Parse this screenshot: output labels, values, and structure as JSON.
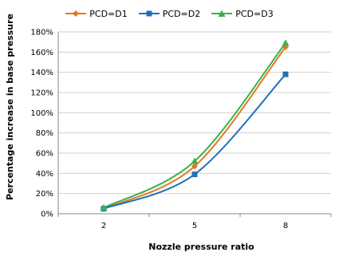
{
  "chart_data": {
    "type": "line",
    "title": "",
    "xlabel": "Nozzle pressure ratio",
    "ylabel": "Percentage increase in base pressure",
    "categories": [
      "2",
      "5",
      "8"
    ],
    "y_ticks": [
      "0%",
      "20%",
      "40%",
      "60%",
      "80%",
      "100%",
      "120%",
      "140%",
      "160%",
      "180%"
    ],
    "ylim": [
      0,
      180
    ],
    "grid": true,
    "legend_position": "top",
    "series": [
      {
        "name": "PCD=D1",
        "color": "#E07B22",
        "marker": "diamond",
        "values": [
          5,
          47,
          165
        ]
      },
      {
        "name": "PCD=D2",
        "color": "#1F6FBF",
        "marker": "square",
        "values": [
          5,
          39,
          138
        ]
      },
      {
        "name": "PCD=D3",
        "color": "#3DB04A",
        "marker": "triangle",
        "values": [
          6,
          52,
          169
        ]
      }
    ]
  }
}
